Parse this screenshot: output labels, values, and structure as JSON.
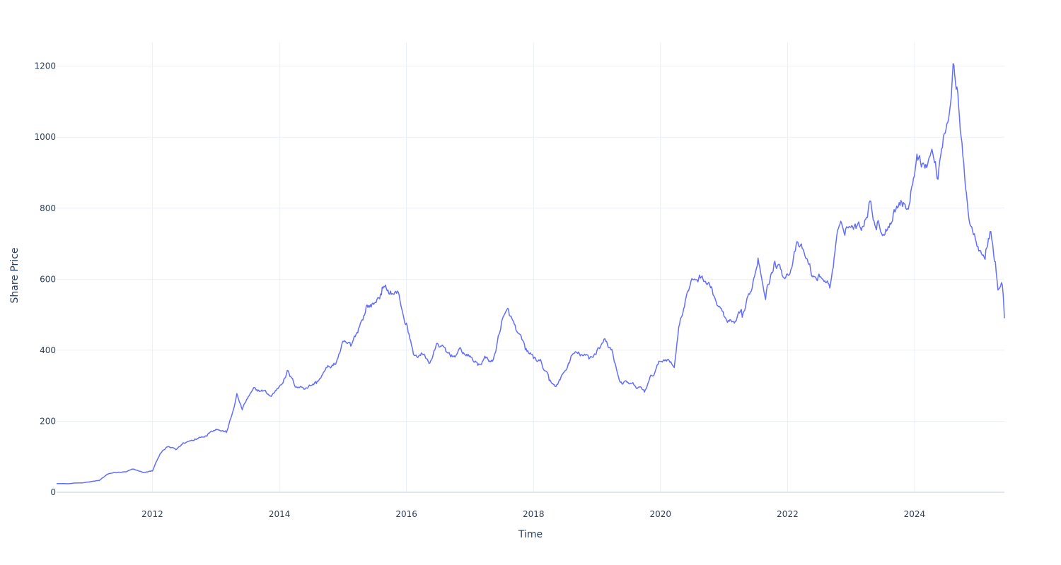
{
  "chart_data": {
    "type": "line",
    "title": "",
    "xlabel": "Time",
    "ylabel": "Share Price",
    "xlim": [
      "2010-06-29",
      "2025-06-01"
    ],
    "ylim": [
      0,
      1267
    ],
    "x_ticks": [
      "2012",
      "2014",
      "2016",
      "2018",
      "2020",
      "2022",
      "2024"
    ],
    "y_ticks": [
      "0",
      "200",
      "400",
      "600",
      "800",
      "1000",
      "1200"
    ],
    "grid": true,
    "legend": "none",
    "series": [
      {
        "color": "#636efa",
        "x": [
          "2010-06-29",
          "2010-09-01",
          "2010-12-01",
          "2011-03-01",
          "2011-04-15",
          "2011-06-01",
          "2011-08-01",
          "2011-09-15",
          "2011-11-15",
          "2012-01-01",
          "2012-02-15",
          "2012-04-01",
          "2012-05-15",
          "2012-07-01",
          "2012-09-01",
          "2012-11-15",
          "2013-01-01",
          "2013-03-01",
          "2013-04-01",
          "2013-05-01",
          "2013-06-01",
          "2013-07-01",
          "2013-08-15",
          "2013-10-01",
          "2013-11-15",
          "2014-01-01",
          "2014-02-15",
          "2014-04-01",
          "2014-06-01",
          "2014-08-01",
          "2014-10-01",
          "2014-11-15",
          "2015-01-01",
          "2015-02-15",
          "2015-04-01",
          "2015-05-15",
          "2015-07-01",
          "2015-08-15",
          "2015-10-01",
          "2015-11-15",
          "2016-01-01",
          "2016-02-15",
          "2016-04-01",
          "2016-05-15",
          "2016-07-01",
          "2016-08-15",
          "2016-10-01",
          "2016-11-15",
          "2017-01-01",
          "2017-02-15",
          "2017-04-01",
          "2017-05-15",
          "2017-07-01",
          "2017-08-15",
          "2017-10-01",
          "2017-11-15",
          "2018-01-01",
          "2018-02-15",
          "2018-04-01",
          "2018-05-15",
          "2018-07-01",
          "2018-08-15",
          "2018-10-01",
          "2018-11-15",
          "2019-01-01",
          "2019-02-15",
          "2019-04-01",
          "2019-05-15",
          "2019-07-01",
          "2019-08-15",
          "2019-10-01",
          "2019-11-15",
          "2020-01-01",
          "2020-02-15",
          "2020-03-20",
          "2020-04-15",
          "2020-06-01",
          "2020-07-15",
          "2020-09-01",
          "2020-10-15",
          "2020-12-01",
          "2021-01-15",
          "2021-03-01",
          "2021-04-15",
          "2021-06-01",
          "2021-07-15",
          "2021-09-01",
          "2021-10-15",
          "2021-12-01",
          "2022-01-15",
          "2022-03-01",
          "2022-04-15",
          "2022-06-01",
          "2022-07-15",
          "2022-09-01",
          "2022-10-15",
          "2022-12-01",
          "2023-01-15",
          "2023-03-01",
          "2023-04-15",
          "2023-06-01",
          "2023-07-15",
          "2023-09-01",
          "2023-10-15",
          "2023-12-01",
          "2024-01-15",
          "2024-03-01",
          "2024-04-15",
          "2024-05-15",
          "2024-06-15",
          "2024-07-15",
          "2024-08-10",
          "2024-09-01",
          "2024-09-20",
          "2024-10-15",
          "2024-11-15",
          "2024-12-15",
          "2025-01-15",
          "2025-02-15",
          "2025-03-15",
          "2025-04-10",
          "2025-04-25",
          "2025-05-15",
          "2025-05-25",
          "2025-06-01"
        ],
        "y": [
          25,
          24,
          27,
          33,
          50,
          56,
          57,
          65,
          55,
          60,
          110,
          128,
          120,
          140,
          150,
          165,
          180,
          170,
          215,
          275,
          232,
          265,
          290,
          285,
          270,
          300,
          340,
          300,
          295,
          310,
          350,
          360,
          420,
          410,
          460,
          520,
          530,
          570,
          560,
          560,
          470,
          380,
          390,
          365,
          420,
          395,
          385,
          400,
          380,
          360,
          380,
          370,
          480,
          505,
          445,
          400,
          380,
          365,
          315,
          300,
          340,
          390,
          385,
          375,
          400,
          430,
          395,
          310,
          305,
          295,
          285,
          330,
          370,
          380,
          350,
          470,
          560,
          600,
          610,
          580,
          520,
          480,
          470,
          500,
          560,
          660,
          560,
          640,
          620,
          625,
          700,
          660,
          600,
          610,
          580,
          730,
          740,
          750,
          745,
          820,
          750,
          730,
          790,
          820,
          800,
          960,
          920,
          960,
          890,
          1000,
          1060,
          1200,
          1130,
          1010,
          900,
          760,
          720,
          690,
          680,
          740,
          640,
          570,
          590,
          560,
          490
        ]
      }
    ]
  }
}
